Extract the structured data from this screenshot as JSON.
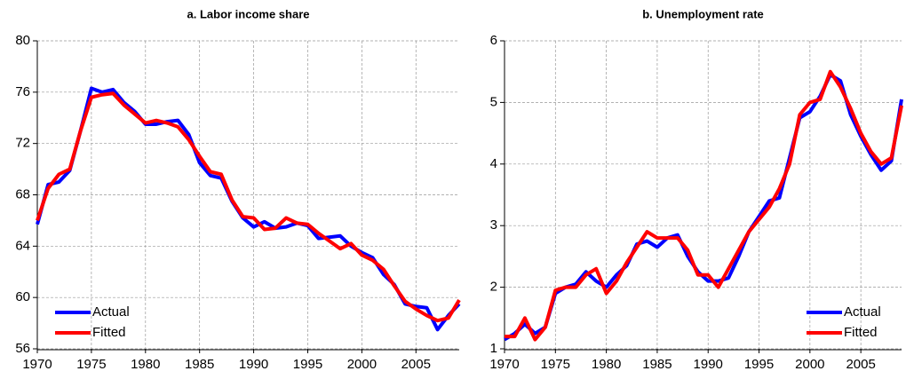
{
  "chart_data": [
    {
      "type": "line",
      "title": "a. Labor income share",
      "x": [
        1970,
        1971,
        1972,
        1973,
        1974,
        1975,
        1976,
        1977,
        1978,
        1979,
        1980,
        1981,
        1982,
        1983,
        1984,
        1985,
        1986,
        1987,
        1988,
        1989,
        1990,
        1991,
        1992,
        1993,
        1994,
        1995,
        1996,
        1997,
        1998,
        1999,
        2000,
        2001,
        2002,
        2003,
        2004,
        2005,
        2006,
        2007,
        2008,
        2009
      ],
      "series": [
        {
          "name": "Actual",
          "color": "#0000ff",
          "values": [
            65.7,
            68.8,
            69.0,
            69.9,
            73.0,
            76.3,
            76.0,
            76.2,
            75.2,
            74.5,
            73.5,
            73.5,
            73.7,
            73.8,
            72.7,
            70.5,
            69.5,
            69.3,
            67.5,
            66.2,
            65.5,
            65.9,
            65.4,
            65.5,
            65.8,
            65.6,
            64.6,
            64.7,
            64.8,
            64.0,
            63.5,
            63.1,
            61.8,
            61.0,
            59.5,
            59.3,
            59.2,
            57.5,
            58.6,
            59.5
          ]
        },
        {
          "name": "Fitted",
          "color": "#ff0000",
          "values": [
            66.0,
            68.5,
            69.6,
            70.0,
            73.0,
            75.6,
            75.8,
            75.9,
            75.0,
            74.3,
            73.6,
            73.8,
            73.6,
            73.3,
            72.3,
            71.0,
            69.8,
            69.6,
            67.6,
            66.3,
            66.2,
            65.3,
            65.4,
            66.2,
            65.8,
            65.7,
            65.0,
            64.4,
            63.8,
            64.2,
            63.3,
            62.9,
            62.2,
            60.9,
            59.7,
            59.1,
            58.6,
            58.2,
            58.4,
            59.8
          ]
        }
      ],
      "xlim": [
        1970,
        2009
      ],
      "xticks": [
        1970,
        1975,
        1980,
        1985,
        1990,
        1995,
        2000,
        2005
      ],
      "ylim": [
        56,
        80
      ],
      "yticks": [
        56,
        60,
        64,
        68,
        72,
        76,
        80
      ],
      "grid": true,
      "legend": "lower-left"
    },
    {
      "type": "line",
      "title": "b. Unemployment rate",
      "x": [
        1970,
        1971,
        1972,
        1973,
        1974,
        1975,
        1976,
        1977,
        1978,
        1979,
        1980,
        1981,
        1982,
        1983,
        1984,
        1985,
        1986,
        1987,
        1988,
        1989,
        1990,
        1991,
        1992,
        1993,
        1994,
        1995,
        1996,
        1997,
        1998,
        1999,
        2000,
        2001,
        2002,
        2003,
        2004,
        2005,
        2006,
        2007,
        2008,
        2009
      ],
      "series": [
        {
          "name": "Actual",
          "color": "#0000ff",
          "values": [
            1.15,
            1.25,
            1.4,
            1.25,
            1.35,
            1.9,
            2.0,
            2.05,
            2.25,
            2.1,
            2.0,
            2.2,
            2.35,
            2.7,
            2.75,
            2.65,
            2.8,
            2.85,
            2.5,
            2.25,
            2.1,
            2.1,
            2.15,
            2.5,
            2.9,
            3.15,
            3.4,
            3.45,
            4.1,
            4.75,
            4.85,
            5.1,
            5.45,
            5.35,
            4.8,
            4.45,
            4.15,
            3.9,
            4.05,
            5.05
          ]
        },
        {
          "name": "Fitted",
          "color": "#ff0000",
          "values": [
            1.2,
            1.2,
            1.5,
            1.15,
            1.35,
            1.95,
            2.0,
            2.0,
            2.2,
            2.3,
            1.9,
            2.1,
            2.4,
            2.65,
            2.9,
            2.8,
            2.8,
            2.8,
            2.6,
            2.2,
            2.2,
            2.0,
            2.3,
            2.6,
            2.9,
            3.1,
            3.3,
            3.6,
            4.0,
            4.8,
            5.0,
            5.05,
            5.5,
            5.25,
            4.9,
            4.5,
            4.2,
            4.0,
            4.1,
            4.95
          ]
        }
      ],
      "xlim": [
        1970,
        2009
      ],
      "xticks": [
        1970,
        1975,
        1980,
        1985,
        1990,
        1995,
        2000,
        2005
      ],
      "ylim": [
        1,
        6
      ],
      "yticks": [
        1,
        2,
        3,
        4,
        5,
        6
      ],
      "grid": true,
      "legend": "lower-right"
    }
  ]
}
